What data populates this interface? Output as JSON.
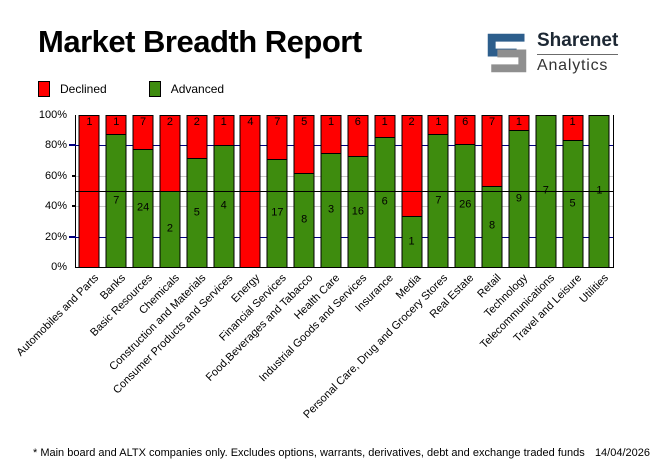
{
  "header": {
    "title": "Market Breadth Report",
    "brand": {
      "name": "Sharenet",
      "sub": "Analytics"
    }
  },
  "legend": {
    "declined_label": "Declined",
    "advanced_label": "Advanced"
  },
  "colors": {
    "declined": "#ff0000",
    "advanced": "#3e8c0e",
    "grid_major": "#000080",
    "grid_minor": "#c8c8c8",
    "reference_line": "#000000",
    "brand_blue": "#2d5e8c",
    "brand_gray": "#8f8f8f"
  },
  "chart_data": {
    "type": "bar",
    "stacked": true,
    "unit": "percent_of_total",
    "title": "Market Breadth Report",
    "categories": [
      "Automobiles and Parts",
      "Banks",
      "Basic Resources",
      "Chemicals",
      "Construction and Materials",
      "Consumer Products and Services",
      "Energy",
      "Financial Services",
      "Food,Beverages and Tabacco",
      "Health Care",
      "Industrial Goods and Services",
      "Insurance",
      "Media",
      "Personal Care, Drug and Grocery Stores",
      "Real Estate",
      "Retail",
      "Technology",
      "Telecommunications",
      "Travel and Leisure",
      "Utilities"
    ],
    "series": [
      {
        "name": "Declined",
        "color": "#ff0000",
        "counts": [
          1,
          1,
          7,
          2,
          2,
          1,
          4,
          7,
          5,
          1,
          6,
          1,
          2,
          1,
          6,
          7,
          1,
          0,
          1,
          0
        ]
      },
      {
        "name": "Advanced",
        "color": "#3e8c0e",
        "counts": [
          0,
          7,
          24,
          2,
          5,
          4,
          0,
          17,
          8,
          3,
          16,
          6,
          1,
          7,
          26,
          8,
          9,
          7,
          5,
          1
        ]
      }
    ],
    "ylim": [
      0,
      100
    ],
    "y_ticks": [
      {
        "label": "100%",
        "value": 100,
        "tick": "none"
      },
      {
        "label": "80%",
        "value": 80,
        "tick": "major"
      },
      {
        "label": "60%",
        "value": 60,
        "tick": "minor"
      },
      {
        "label": "40%",
        "value": 40,
        "tick": "minor"
      },
      {
        "label": "20%",
        "value": 20,
        "tick": "major"
      },
      {
        "label": "0%",
        "value": 0,
        "tick": "none"
      }
    ],
    "gridlines": [
      {
        "value": 80,
        "style": "major"
      },
      {
        "value": 60,
        "style": "minor"
      },
      {
        "value": 40,
        "style": "minor"
      },
      {
        "value": 20,
        "style": "major"
      }
    ],
    "reference_line_value": 50,
    "legend_position": "top-left"
  },
  "footer": {
    "note": "* Main board and ALTX companies only. Excludes options, warrants, derivatives, debt and exchange traded funds",
    "date": "14/04/2026"
  }
}
